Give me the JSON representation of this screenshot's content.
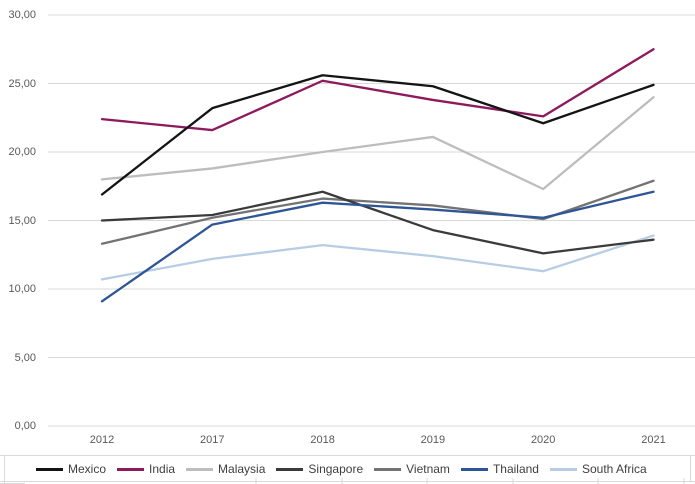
{
  "chart_data": {
    "type": "line",
    "title": "",
    "xlabel": "",
    "ylabel": "",
    "grid": true,
    "legend_position": "bottom",
    "decimal_separator": ",",
    "ylim": [
      0,
      30
    ],
    "ytick_step": 5,
    "yticks": [
      {
        "value": 30,
        "label": "30,00"
      },
      {
        "value": 25,
        "label": "25,00"
      },
      {
        "value": 20,
        "label": "20,00"
      },
      {
        "value": 15,
        "label": "15,00"
      },
      {
        "value": 10,
        "label": "10,00"
      },
      {
        "value": 5,
        "label": "5,00"
      },
      {
        "value": 0,
        "label": "0,00"
      }
    ],
    "categories": [
      "2012",
      "2017",
      "2018",
      "2019",
      "2020",
      "2021"
    ],
    "series": [
      {
        "name": "Mexico",
        "color": "#141414",
        "values": [
          16.9,
          23.2,
          25.6,
          24.8,
          22.1,
          24.9
        ]
      },
      {
        "name": "India",
        "color": "#8E1A5E",
        "values": [
          22.4,
          21.6,
          25.2,
          23.8,
          22.6,
          27.5
        ]
      },
      {
        "name": "Malaysia",
        "color": "#BDBDBD",
        "values": [
          18.0,
          18.8,
          20.0,
          21.1,
          17.3,
          24.0
        ]
      },
      {
        "name": "Singapore",
        "color": "#3B3B3B",
        "values": [
          15.0,
          15.4,
          17.1,
          14.3,
          12.6,
          13.6
        ]
      },
      {
        "name": "Vietnam",
        "color": "#737373",
        "values": [
          13.3,
          15.2,
          16.6,
          16.1,
          15.1,
          17.9
        ]
      },
      {
        "name": "Thailand",
        "color": "#2E5696",
        "values": [
          9.1,
          14.7,
          16.3,
          15.8,
          15.2,
          17.1
        ]
      },
      {
        "name": "South Africa",
        "color": "#B8CCE4",
        "values": [
          10.7,
          12.2,
          13.2,
          12.4,
          11.3,
          13.9
        ]
      }
    ]
  },
  "colors": {
    "background": "#FFFFFF",
    "gridline": "#D9D9D9",
    "sheet_line": "#D9D9D9",
    "axis_text": "#595959",
    "legend_text": "#3F3F3F"
  }
}
